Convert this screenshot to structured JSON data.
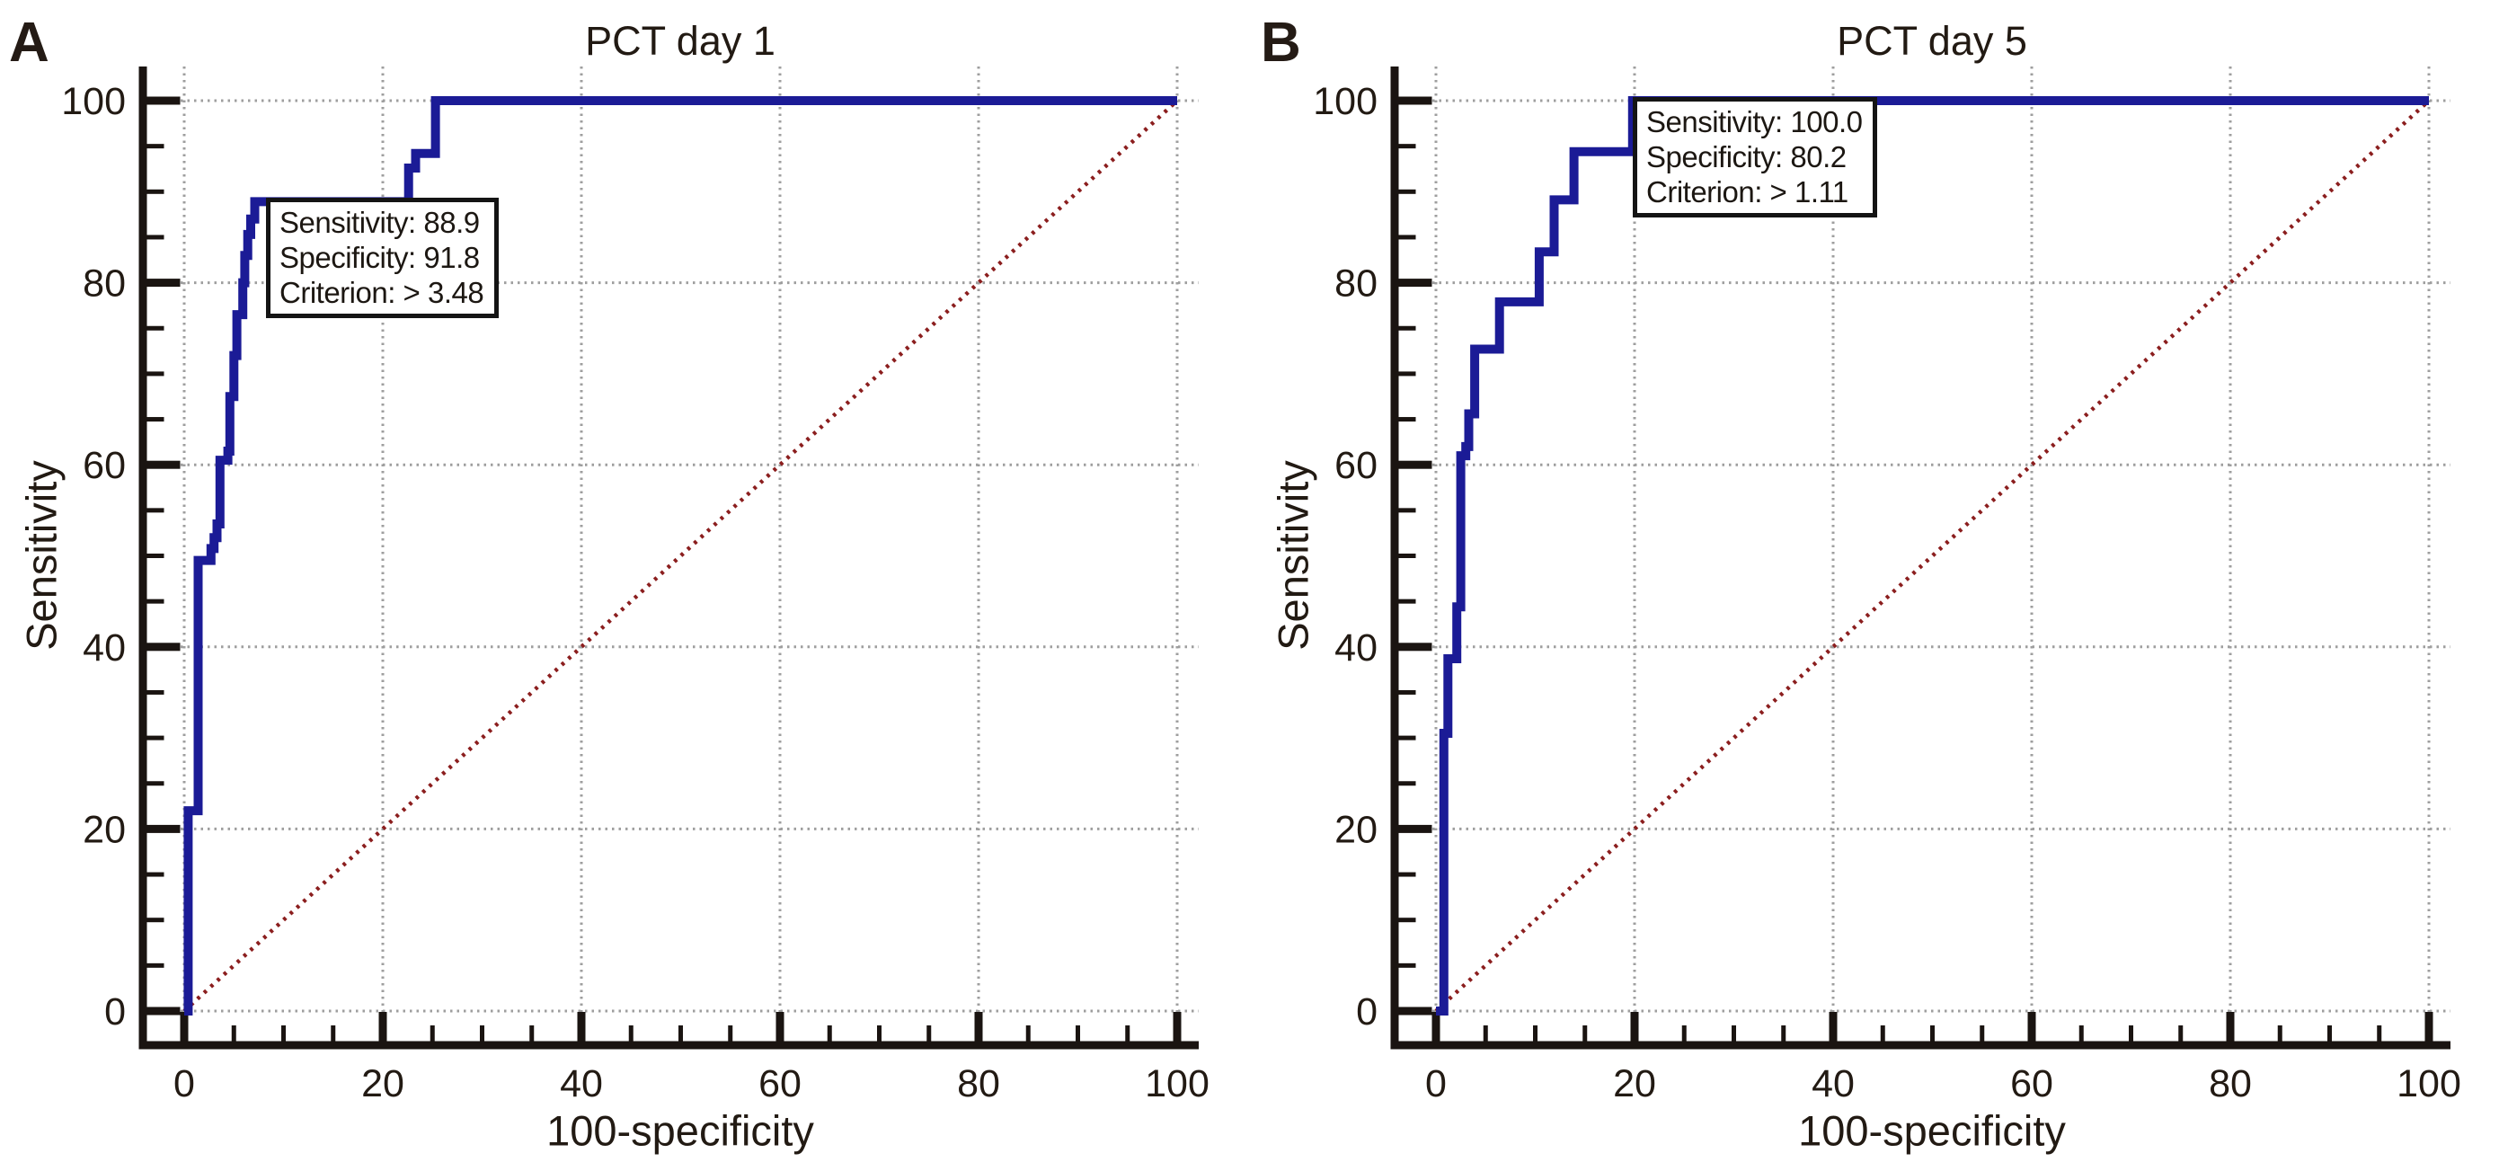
{
  "figure": {
    "background": "#ffffff",
    "curve_color": "#1b1b96",
    "diagonal_color": "#8b1e1e",
    "grid_color": "#9e9e9e",
    "axis_color": "#1a1411",
    "text_color": "#221a13"
  },
  "chart_data": [
    {
      "type": "line",
      "letter": "A",
      "title": "PCT day 1",
      "xlabel": "100-specificity",
      "ylabel": "Sensitivity",
      "xlim": [
        0,
        100
      ],
      "ylim": [
        0,
        100
      ],
      "x_ticks": [
        0,
        20,
        40,
        60,
        80,
        100
      ],
      "y_ticks": [
        0,
        20,
        40,
        60,
        80,
        100
      ],
      "minor_tick_step": 5,
      "grid": true,
      "legend_position": "none",
      "series": [
        {
          "name": "ROC curve PCT day 1",
          "style": "solid",
          "color": "#1b1b96",
          "points": [
            [
              0,
              0
            ],
            [
              0.4,
              0
            ],
            [
              0.4,
              22
            ],
            [
              1.4,
              22
            ],
            [
              1.4,
              49.5
            ],
            [
              2.7,
              49.5
            ],
            [
              2.7,
              50.8
            ],
            [
              3.0,
              50.8
            ],
            [
              3.0,
              52
            ],
            [
              3.3,
              52
            ],
            [
              3.3,
              53.5
            ],
            [
              3.6,
              53.5
            ],
            [
              3.6,
              60.5
            ],
            [
              4.4,
              60.5
            ],
            [
              4.4,
              61.5
            ],
            [
              4.6,
              61.5
            ],
            [
              4.6,
              67.5
            ],
            [
              5.0,
              67.5
            ],
            [
              5.0,
              72
            ],
            [
              5.3,
              72
            ],
            [
              5.3,
              76.5
            ],
            [
              5.9,
              76.5
            ],
            [
              5.9,
              80
            ],
            [
              6.1,
              80
            ],
            [
              6.1,
              83
            ],
            [
              6.4,
              83
            ],
            [
              6.4,
              85.3
            ],
            [
              6.7,
              85.3
            ],
            [
              6.7,
              87
            ],
            [
              7.1,
              87
            ],
            [
              7.1,
              88.9
            ],
            [
              22.6,
              88.9
            ],
            [
              22.6,
              92.6
            ],
            [
              23.3,
              92.6
            ],
            [
              23.3,
              94.2
            ],
            [
              25.3,
              94.2
            ],
            [
              25.3,
              100
            ],
            [
              100,
              100
            ]
          ]
        },
        {
          "name": "chance diagonal",
          "style": "dotted",
          "color": "#8b1e1e",
          "points": [
            [
              0,
              0
            ],
            [
              100,
              100
            ]
          ]
        }
      ],
      "annotation": {
        "lines": [
          "Sensitivity: 88.9",
          "Specificity: 91.8",
          "Criterion: > 3.48"
        ],
        "anchor": [
          8.2,
          88.9
        ]
      }
    },
    {
      "type": "line",
      "letter": "B",
      "title": "PCT day 5",
      "xlabel": "100-specificity",
      "ylabel": "Sensitivity",
      "xlim": [
        0,
        100
      ],
      "ylim": [
        0,
        100
      ],
      "x_ticks": [
        0,
        20,
        40,
        60,
        80,
        100
      ],
      "y_ticks": [
        0,
        20,
        40,
        60,
        80,
        100
      ],
      "minor_tick_step": 5,
      "grid": true,
      "legend_position": "none",
      "series": [
        {
          "name": "ROC curve PCT day 5",
          "style": "solid",
          "color": "#1b1b96",
          "points": [
            [
              0,
              0
            ],
            [
              0.8,
              0
            ],
            [
              0.8,
              30.5
            ],
            [
              1.2,
              30.5
            ],
            [
              1.2,
              38.7
            ],
            [
              2.1,
              38.7
            ],
            [
              2.1,
              44.4
            ],
            [
              2.5,
              44.4
            ],
            [
              2.5,
              61
            ],
            [
              3.0,
              61
            ],
            [
              3.0,
              62
            ],
            [
              3.3,
              62
            ],
            [
              3.3,
              65.6
            ],
            [
              3.9,
              65.6
            ],
            [
              3.9,
              72.7
            ],
            [
              6.4,
              72.7
            ],
            [
              6.4,
              77.9
            ],
            [
              10.4,
              77.9
            ],
            [
              10.4,
              83.4
            ],
            [
              11.9,
              83.4
            ],
            [
              11.9,
              89.1
            ],
            [
              13.9,
              89.1
            ],
            [
              13.9,
              94.4
            ],
            [
              19.8,
              94.4
            ],
            [
              19.8,
              100
            ],
            [
              100,
              100
            ]
          ]
        },
        {
          "name": "chance diagonal",
          "style": "dotted",
          "color": "#8b1e1e",
          "points": [
            [
              0,
              0
            ],
            [
              100,
              100
            ]
          ]
        }
      ],
      "annotation": {
        "lines": [
          "Sensitivity: 100.0",
          "Specificity: 80.2",
          "Criterion: > 1.11"
        ],
        "anchor": [
          19.8,
          100
        ]
      }
    }
  ]
}
